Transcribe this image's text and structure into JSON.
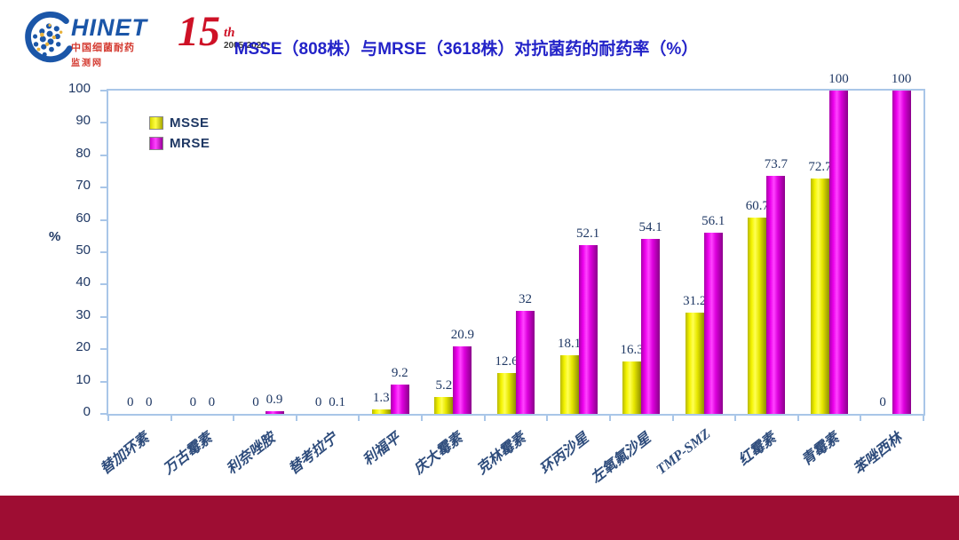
{
  "header": {
    "logo": {
      "brand": "HINET",
      "sub1": "中国细菌耐药",
      "sub2": "监测网",
      "anniv_number": "15",
      "anniv_suffix": "th",
      "anniv_years": "2005-2020"
    },
    "title": "MSSE（808株）与MRSE（3618株）对抗菌药的耐药率（%）"
  },
  "chart_data": {
    "type": "bar",
    "title": "MSSE（808株）与MRSE（3618株）对抗菌药的耐药率（%）",
    "ylabel": "%",
    "ylim": [
      0,
      100
    ],
    "yticks": [
      0,
      10,
      20,
      30,
      40,
      50,
      60,
      70,
      80,
      90,
      100
    ],
    "grid": false,
    "legend_position": "top-left",
    "categories": [
      "替加环素",
      "万古霉素",
      "利奈唑胺",
      "替考拉宁",
      "利福平",
      "庆大霉素",
      "克林霉素",
      "环丙沙星",
      "左氧氟沙星",
      "TMP-SMZ",
      "红霉素",
      "青霉素",
      "苯唑西林"
    ],
    "series": [
      {
        "name": "MSSE",
        "color": "#F0F000",
        "values": [
          0,
          0,
          0,
          0,
          1.3,
          5.2,
          12.6,
          18.1,
          16.3,
          31.2,
          60.7,
          72.7,
          0
        ]
      },
      {
        "name": "MRSE",
        "color": "#EE00EE",
        "values": [
          0,
          0,
          0.9,
          0.1,
          9.2,
          20.9,
          32,
          52.1,
          54.1,
          56.1,
          73.7,
          100,
          100
        ]
      }
    ]
  },
  "colors": {
    "title_blue": "#2323C8",
    "axis_frame": "#A9C6E8",
    "label_navy": "#1F3864",
    "footer_band": "#9E0D33",
    "logo_blue": "#1B56A8",
    "logo_red": "#CE1126"
  }
}
